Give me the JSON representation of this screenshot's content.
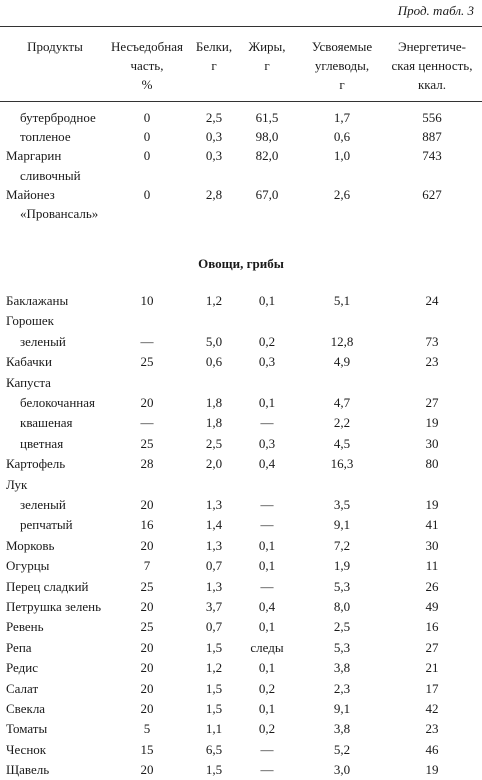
{
  "continuation": "Прод. табл. 3",
  "header": {
    "products": "Продукты",
    "inedible": [
      "Несъедобная",
      "часть,",
      "%"
    ],
    "protein": [
      "Белки,",
      "г"
    ],
    "fat": [
      "Жиры,",
      "г"
    ],
    "carbs": [
      "Усвояемые",
      "углеводы,",
      "г"
    ],
    "energy": [
      "Энергетиче-",
      "ская ценность,",
      "ккал."
    ]
  },
  "rows_top": [
    {
      "name": "бутербродное",
      "indent": true,
      "inedible": "0",
      "protein": "2,5",
      "fat": "61,5",
      "carbs": "1,7",
      "energy": "556"
    },
    {
      "name": "топленое",
      "indent": true,
      "inedible": "0",
      "protein": "0,3",
      "fat": "98,0",
      "carbs": "0,6",
      "energy": "887"
    },
    {
      "name": "Маргарин",
      "indent": false,
      "inedible": "0",
      "protein": "0,3",
      "fat": "82,0",
      "carbs": "1,0",
      "energy": "743"
    },
    {
      "name": "сливочный",
      "indent": true,
      "inedible": "",
      "protein": "",
      "fat": "",
      "carbs": "",
      "energy": ""
    },
    {
      "name": "Майонез",
      "indent": false,
      "inedible": "0",
      "protein": "2,8",
      "fat": "67,0",
      "carbs": "2,6",
      "energy": "627"
    },
    {
      "name": "«Провансаль»",
      "indent": true,
      "inedible": "",
      "protein": "",
      "fat": "",
      "carbs": "",
      "energy": ""
    }
  ],
  "section_title": "Овощи, грибы",
  "rows_veg": [
    {
      "name": "Баклажаны",
      "indent": false,
      "inedible": "10",
      "protein": "1,2",
      "fat": "0,1",
      "carbs": "5,1",
      "energy": "24"
    },
    {
      "name": "Горошек",
      "indent": false,
      "inedible": "",
      "protein": "",
      "fat": "",
      "carbs": "",
      "energy": ""
    },
    {
      "name": "зеленый",
      "indent": true,
      "inedible": "—",
      "protein": "5,0",
      "fat": "0,2",
      "carbs": "12,8",
      "energy": "73"
    },
    {
      "name": "Кабачки",
      "indent": false,
      "inedible": "25",
      "protein": "0,6",
      "fat": "0,3",
      "carbs": "4,9",
      "energy": "23"
    },
    {
      "name": "Капуста",
      "indent": false,
      "inedible": "",
      "protein": "",
      "fat": "",
      "carbs": "",
      "energy": ""
    },
    {
      "name": "белокочанная",
      "indent": true,
      "inedible": "20",
      "protein": "1,8",
      "fat": "0,1",
      "carbs": "4,7",
      "energy": "27"
    },
    {
      "name": "квашеная",
      "indent": true,
      "inedible": "—",
      "protein": "1,8",
      "fat": "—",
      "carbs": "2,2",
      "energy": "19"
    },
    {
      "name": "цветная",
      "indent": true,
      "inedible": "25",
      "protein": "2,5",
      "fat": "0,3",
      "carbs": "4,5",
      "energy": "30"
    },
    {
      "name": "Картофель",
      "indent": false,
      "inedible": "28",
      "protein": "2,0",
      "fat": "0,4",
      "carbs": "16,3",
      "energy": "80"
    },
    {
      "name": "Лук",
      "indent": false,
      "inedible": "",
      "protein": "",
      "fat": "",
      "carbs": "",
      "energy": ""
    },
    {
      "name": "зеленый",
      "indent": true,
      "inedible": "20",
      "protein": "1,3",
      "fat": "—",
      "carbs": "3,5",
      "energy": "19"
    },
    {
      "name": "репчатый",
      "indent": true,
      "inedible": "16",
      "protein": "1,4",
      "fat": "—",
      "carbs": "9,1",
      "energy": "41"
    },
    {
      "name": "Морковь",
      "indent": false,
      "inedible": "20",
      "protein": "1,3",
      "fat": "0,1",
      "carbs": "7,2",
      "energy": "30"
    },
    {
      "name": "Огурцы",
      "indent": false,
      "inedible": "7",
      "protein": "0,7",
      "fat": "0,1",
      "carbs": "1,9",
      "energy": "11"
    },
    {
      "name": "Перец сладкий",
      "indent": false,
      "inedible": "25",
      "protein": "1,3",
      "fat": "—",
      "carbs": "5,3",
      "energy": "26"
    },
    {
      "name": "Петрушка зелень",
      "indent": false,
      "inedible": "20",
      "protein": "3,7",
      "fat": "0,4",
      "carbs": "8,0",
      "energy": "49"
    },
    {
      "name": "Ревень",
      "indent": false,
      "inedible": "25",
      "protein": "0,7",
      "fat": "0,1",
      "carbs": "2,5",
      "energy": "16"
    },
    {
      "name": "Репа",
      "indent": false,
      "inedible": "20",
      "protein": "1,5",
      "fat": "следы",
      "carbs": "5,3",
      "energy": "27"
    },
    {
      "name": "Редис",
      "indent": false,
      "inedible": "20",
      "protein": "1,2",
      "fat": "0,1",
      "carbs": "3,8",
      "energy": "21"
    },
    {
      "name": "Салат",
      "indent": false,
      "inedible": "20",
      "protein": "1,5",
      "fat": "0,2",
      "carbs": "2,3",
      "energy": "17"
    },
    {
      "name": "Свекла",
      "indent": false,
      "inedible": "20",
      "protein": "1,5",
      "fat": "0,1",
      "carbs": "9,1",
      "energy": "42"
    },
    {
      "name": "Томаты",
      "indent": false,
      "inedible": "5",
      "protein": "1,1",
      "fat": "0,2",
      "carbs": "3,8",
      "energy": "23"
    },
    {
      "name": "Чеснок",
      "indent": false,
      "inedible": "15",
      "protein": "6,5",
      "fat": "—",
      "carbs": "5,2",
      "energy": "46"
    },
    {
      "name": "Щавель",
      "indent": false,
      "inedible": "20",
      "protein": "1,5",
      "fat": "—",
      "carbs": "3,0",
      "energy": "19"
    }
  ]
}
